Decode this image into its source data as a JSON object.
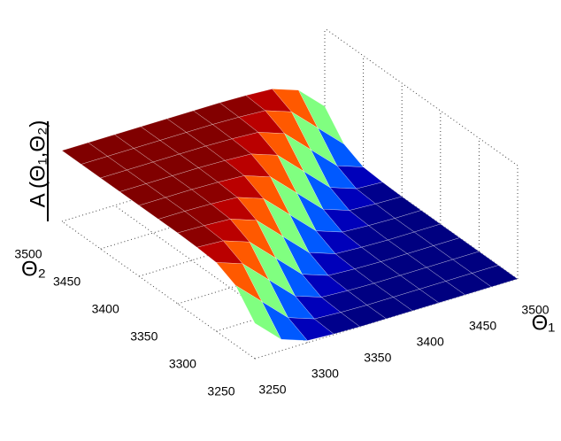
{
  "chart_data": {
    "type": "surface",
    "xlabel": "Θ₁",
    "ylabel": "Θ₂",
    "zlabel": "A (Θ₁,Θ₂)",
    "x": [
      3250,
      3275,
      3300,
      3325,
      3350,
      3375,
      3400,
      3425,
      3450,
      3475,
      3500
    ],
    "y": [
      3250,
      3275,
      3300,
      3325,
      3350,
      3375,
      3400,
      3425,
      3450,
      3475,
      3500
    ],
    "z": [
      [
        0.5,
        0.16,
        0.03,
        0.01,
        0,
        0,
        0,
        0,
        0,
        0,
        0
      ],
      [
        0.84,
        0.5,
        0.16,
        0.03,
        0.01,
        0,
        0,
        0,
        0,
        0,
        0
      ],
      [
        0.97,
        0.84,
        0.5,
        0.16,
        0.03,
        0.01,
        0,
        0,
        0,
        0,
        0
      ],
      [
        0.99,
        0.97,
        0.84,
        0.5,
        0.16,
        0.03,
        0.01,
        0,
        0,
        0,
        0
      ],
      [
        1,
        0.99,
        0.97,
        0.84,
        0.5,
        0.16,
        0.03,
        0.01,
        0,
        0,
        0
      ],
      [
        1,
        1,
        0.99,
        0.97,
        0.84,
        0.5,
        0.16,
        0.03,
        0.01,
        0,
        0
      ],
      [
        1,
        1,
        1,
        0.99,
        0.97,
        0.84,
        0.5,
        0.16,
        0.03,
        0.01,
        0
      ],
      [
        1,
        1,
        1,
        1,
        0.99,
        0.97,
        0.84,
        0.5,
        0.16,
        0.03,
        0.01
      ],
      [
        1,
        1,
        1,
        1,
        1,
        0.99,
        0.97,
        0.84,
        0.5,
        0.16,
        0.03
      ],
      [
        1,
        1,
        1,
        1,
        1,
        1,
        0.99,
        0.97,
        0.84,
        0.5,
        0.16
      ],
      [
        1,
        1,
        1,
        1,
        1,
        1,
        1,
        0.99,
        0.97,
        0.84,
        0.5
      ]
    ],
    "xlim": [
      3250,
      3500
    ],
    "ylim": [
      3250,
      3500
    ],
    "zlim": [
      0,
      1
    ],
    "xticks": [
      3250,
      3300,
      3350,
      3400,
      3450,
      3500
    ],
    "yticks": [
      3250,
      3300,
      3350,
      3400,
      3450,
      3500
    ],
    "colormap": "jet",
    "grid": true
  }
}
